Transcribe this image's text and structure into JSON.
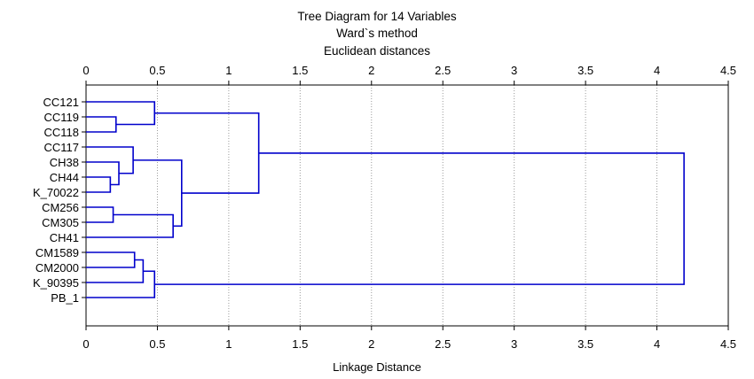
{
  "chart_data": {
    "type": "dendrogram",
    "title": "Tree Diagram for 14 Variables",
    "subtitle_lines": [
      "Ward`s method",
      "Euclidean distances"
    ],
    "xlabel": "Linkage Distance",
    "xlim": [
      0,
      4.5
    ],
    "xticks": [
      "0",
      "0.5",
      "1",
      "1.5",
      "2",
      "2.5",
      "3",
      "3.5",
      "4",
      "4.5"
    ],
    "xtick_values": [
      0,
      0.5,
      1,
      1.5,
      2,
      2.5,
      3,
      3.5,
      4,
      4.5
    ],
    "grid": "vertical dotted",
    "line_color": "#0000cc",
    "leaves": [
      "CC121",
      "CC119",
      "CC118",
      "CC117",
      "CH38",
      "CH44",
      "K_70022",
      "CM256",
      "CM305",
      "CH41",
      "CM1589",
      "CM2000",
      "K_90395",
      "PB_1"
    ],
    "merges": [
      {
        "id": "n1",
        "left": "CC119",
        "right": "CC118",
        "distance": 0.21
      },
      {
        "id": "n2",
        "left": "CC121",
        "right": "n1",
        "distance": 0.48
      },
      {
        "id": "n3",
        "left": "CH44",
        "right": "K_70022",
        "distance": 0.17
      },
      {
        "id": "n4",
        "left": "CH38",
        "right": "n3",
        "distance": 0.23
      },
      {
        "id": "n5",
        "left": "CC117",
        "right": "n4",
        "distance": 0.33
      },
      {
        "id": "n6",
        "left": "CM256",
        "right": "CM305",
        "distance": 0.19
      },
      {
        "id": "n7",
        "left": "n6",
        "right": "CH41",
        "distance": 0.61
      },
      {
        "id": "n8",
        "left": "n5",
        "right": "n7",
        "distance": 0.67
      },
      {
        "id": "n9",
        "left": "n2",
        "right": "n8",
        "distance": 1.21
      },
      {
        "id": "n10",
        "left": "CM1589",
        "right": "CM2000",
        "distance": 0.34
      },
      {
        "id": "n11",
        "left": "n10",
        "right": "K_90395",
        "distance": 0.4
      },
      {
        "id": "n12",
        "left": "n11",
        "right": "PB_1",
        "distance": 0.48
      },
      {
        "id": "n13",
        "left": "n9",
        "right": "n12",
        "distance": 4.19
      }
    ]
  }
}
